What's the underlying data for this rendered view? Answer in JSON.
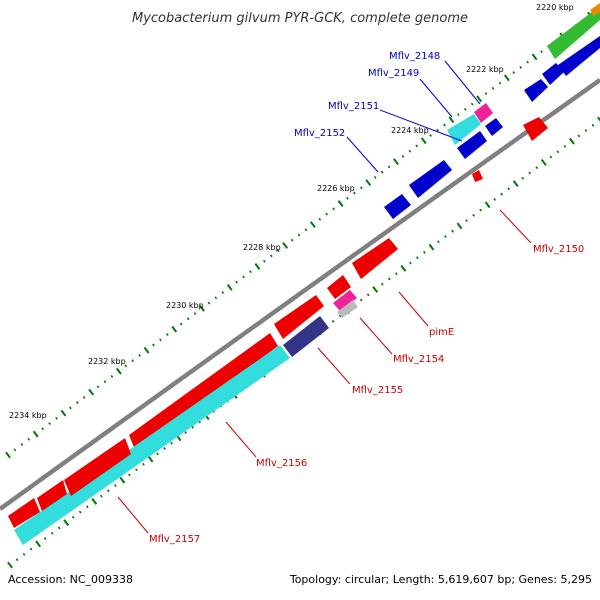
{
  "title": "Mycobacterium gilvum PYR-GCK, complete genome",
  "footer": {
    "accession": "Accession: NC_009338",
    "stats": "Topology: circular; Length: 5,619,607 bp; Genes: 5,295"
  },
  "colors": {
    "forward_label": "#0000cc",
    "reverse_label": "#cc0000",
    "backbone": "#808080",
    "tick": "#007700",
    "blue": "#0000cc",
    "red": "#ee0000",
    "cyan": "#33dddd",
    "magenta": "#ee2299",
    "navy": "#333388",
    "grey": "#bbbbbb",
    "green": "#33bb33",
    "orange": "#ee8800"
  },
  "ruler_labels": [
    "2220 kbp",
    "2222 kbp",
    "2224 kbp",
    "2226 kbp",
    "2228 kbp",
    "2230 kbp",
    "2232 kbp",
    "2234 kbp"
  ],
  "gene_labels": {
    "forward": [
      "Mflv_2148",
      "Mflv_2149",
      "Mflv_2151",
      "Mflv_2152"
    ],
    "reverse": [
      "Mflv_2150",
      "pimE",
      "Mflv_2154",
      "Mflv_2155",
      "Mflv_2156",
      "Mflv_2157"
    ]
  }
}
